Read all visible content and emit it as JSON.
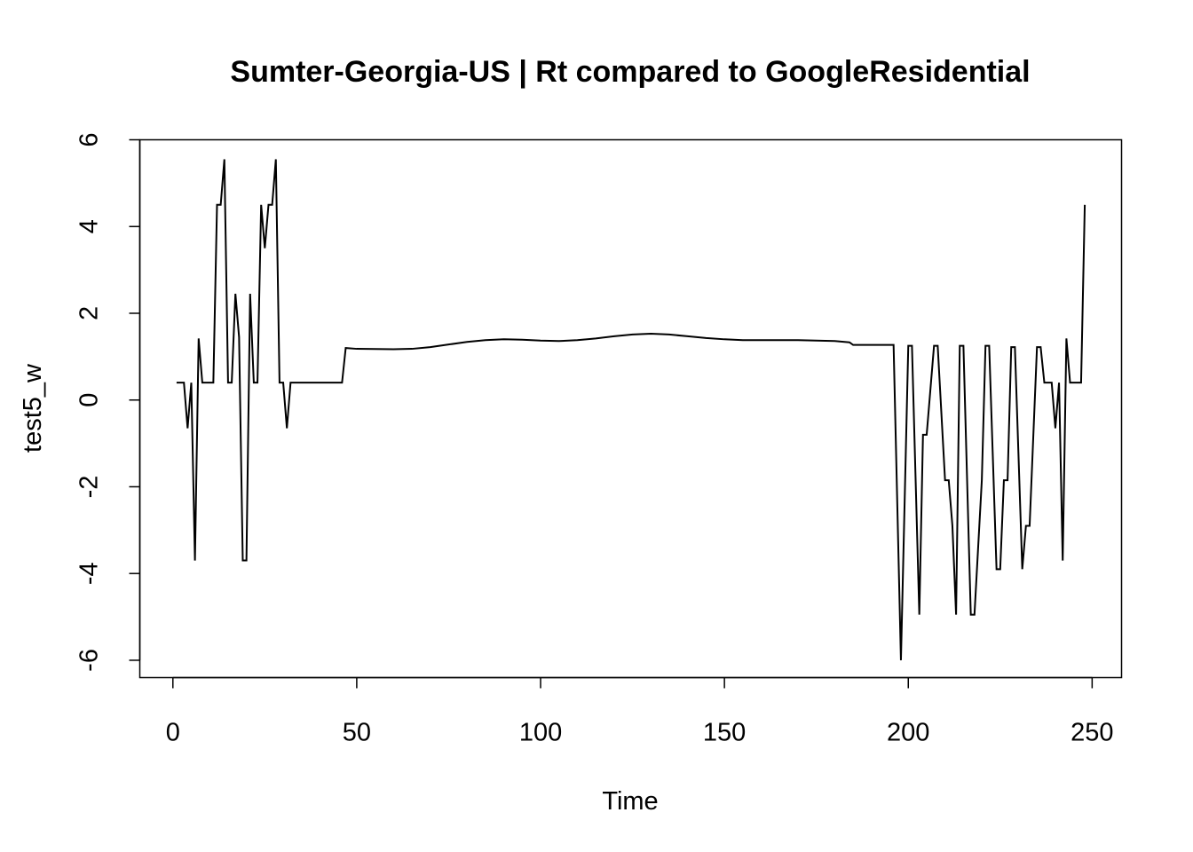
{
  "chart_data": {
    "type": "line",
    "title": "Sumter-Georgia-US | Rt compared to GoogleResidential",
    "xlabel": "Time",
    "ylabel": "test5_w",
    "xlim": [
      -9,
      258
    ],
    "ylim": [
      -6.4,
      6
    ],
    "x_ticks": [
      0,
      50,
      100,
      150,
      200,
      250
    ],
    "y_ticks": [
      -6,
      -4,
      -2,
      0,
      2,
      4,
      6
    ],
    "grid": false,
    "legend": "none",
    "line_color": "#000000",
    "series": [
      {
        "points": [
          [
            1,
            0.4
          ],
          [
            3,
            0.4
          ],
          [
            4,
            -0.65
          ],
          [
            5,
            0.4
          ],
          [
            6,
            -3.7
          ],
          [
            7,
            1.42
          ],
          [
            8,
            0.4
          ],
          [
            10,
            0.4
          ],
          [
            11,
            0.4
          ],
          [
            12,
            4.5
          ],
          [
            13,
            4.5
          ],
          [
            14,
            5.55
          ],
          [
            15,
            0.4
          ],
          [
            16,
            0.4
          ],
          [
            17,
            2.45
          ],
          [
            18,
            1.45
          ],
          [
            19,
            -3.7
          ],
          [
            20,
            -3.7
          ],
          [
            21,
            2.45
          ],
          [
            22,
            0.4
          ],
          [
            23,
            0.4
          ],
          [
            24,
            4.5
          ],
          [
            25,
            3.5
          ],
          [
            26,
            4.5
          ],
          [
            27,
            4.5
          ],
          [
            28,
            5.55
          ],
          [
            29,
            0.4
          ],
          [
            30,
            0.4
          ],
          [
            31,
            -0.65
          ],
          [
            32,
            0.4
          ],
          [
            35,
            0.4
          ],
          [
            40,
            0.4
          ],
          [
            46,
            0.4
          ],
          [
            47,
            1.2
          ],
          [
            50,
            1.18
          ],
          [
            60,
            1.17
          ],
          [
            65,
            1.18
          ],
          [
            70,
            1.22
          ],
          [
            75,
            1.28
          ],
          [
            80,
            1.34
          ],
          [
            85,
            1.38
          ],
          [
            90,
            1.4
          ],
          [
            95,
            1.39
          ],
          [
            100,
            1.37
          ],
          [
            105,
            1.36
          ],
          [
            110,
            1.38
          ],
          [
            115,
            1.42
          ],
          [
            120,
            1.47
          ],
          [
            125,
            1.51
          ],
          [
            130,
            1.53
          ],
          [
            135,
            1.51
          ],
          [
            140,
            1.47
          ],
          [
            145,
            1.43
          ],
          [
            150,
            1.4
          ],
          [
            155,
            1.38
          ],
          [
            160,
            1.38
          ],
          [
            165,
            1.38
          ],
          [
            170,
            1.38
          ],
          [
            175,
            1.37
          ],
          [
            180,
            1.36
          ],
          [
            184,
            1.33
          ],
          [
            185,
            1.27
          ],
          [
            190,
            1.27
          ],
          [
            196,
            1.27
          ],
          [
            198,
            -6.0
          ],
          [
            200,
            1.25
          ],
          [
            201,
            1.25
          ],
          [
            203,
            -4.95
          ],
          [
            204,
            -0.8
          ],
          [
            205,
            -0.8
          ],
          [
            207,
            1.25
          ],
          [
            208,
            1.25
          ],
          [
            210,
            -1.85
          ],
          [
            211,
            -1.85
          ],
          [
            212,
            -2.9
          ],
          [
            213,
            -4.95
          ],
          [
            214,
            1.25
          ],
          [
            215,
            1.25
          ],
          [
            217,
            -4.95
          ],
          [
            218,
            -4.95
          ],
          [
            220,
            -1.85
          ],
          [
            221,
            1.25
          ],
          [
            222,
            1.25
          ],
          [
            224,
            -3.9
          ],
          [
            225,
            -3.9
          ],
          [
            226,
            -1.85
          ],
          [
            227,
            -1.85
          ],
          [
            228,
            1.22
          ],
          [
            229,
            1.22
          ],
          [
            231,
            -3.9
          ],
          [
            232,
            -2.9
          ],
          [
            233,
            -2.9
          ],
          [
            235,
            1.22
          ],
          [
            236,
            1.22
          ],
          [
            237,
            0.4
          ],
          [
            239,
            0.4
          ],
          [
            240,
            -0.65
          ],
          [
            241,
            0.4
          ],
          [
            242,
            -3.7
          ],
          [
            243,
            1.42
          ],
          [
            244,
            0.4
          ],
          [
            246,
            0.4
          ],
          [
            247,
            0.4
          ],
          [
            248,
            4.5
          ]
        ]
      }
    ]
  }
}
